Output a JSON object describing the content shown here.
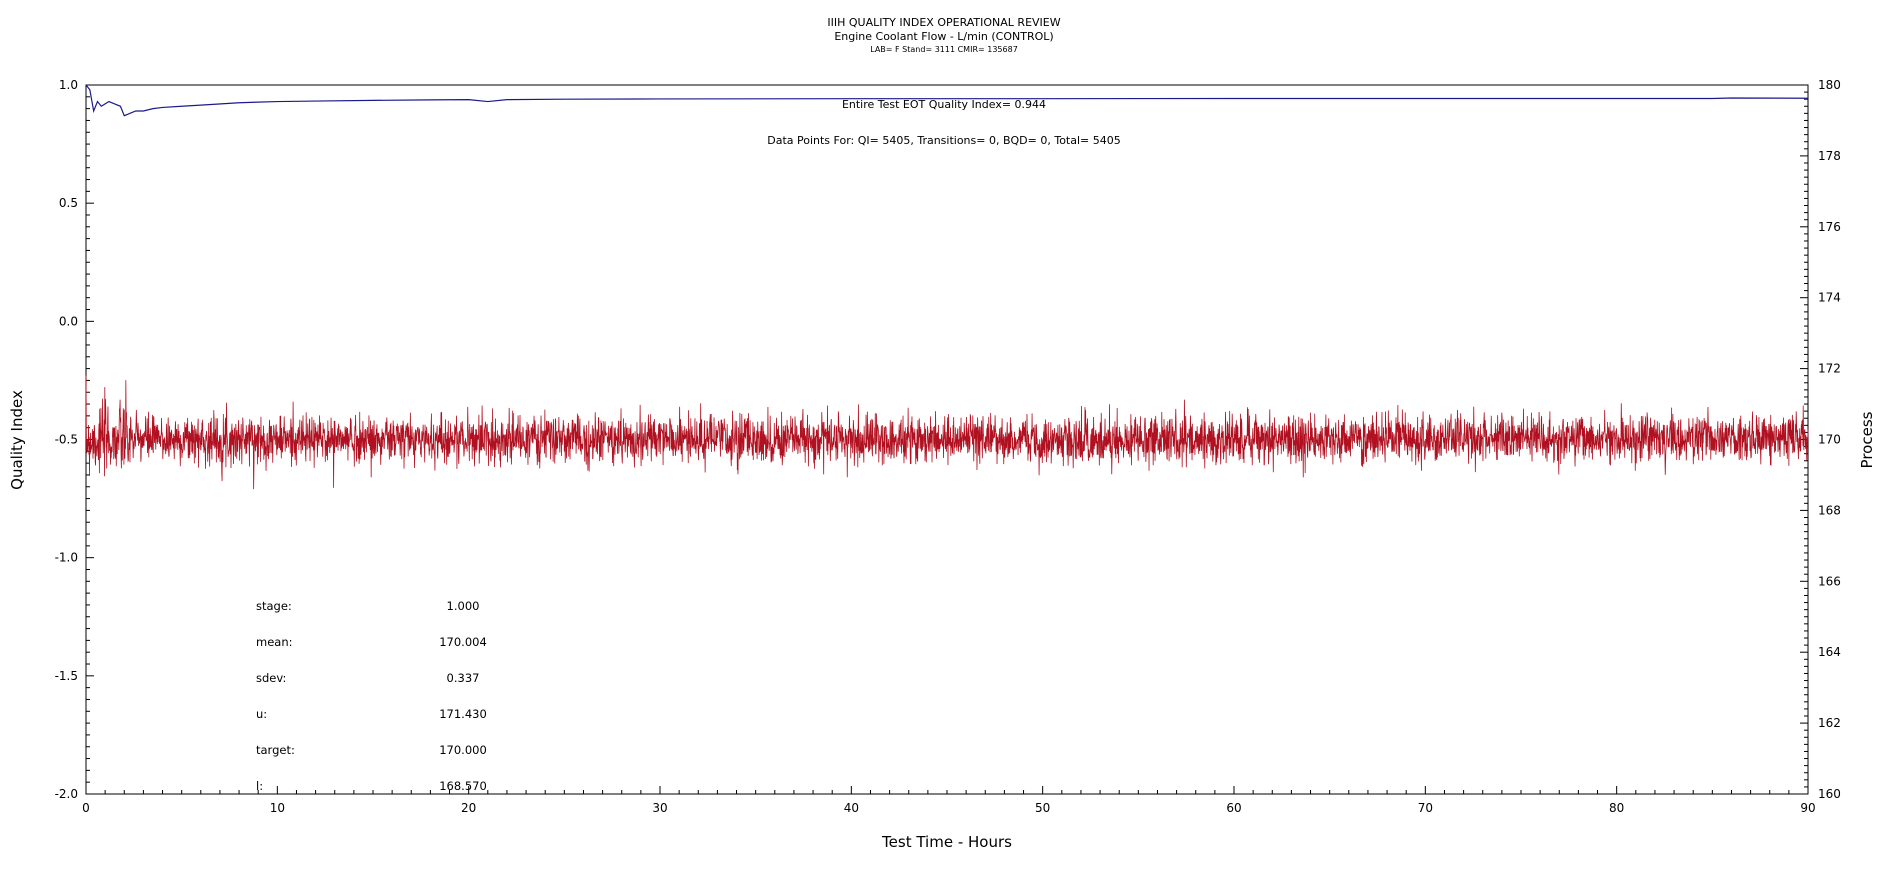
{
  "chart_data": {
    "type": "line",
    "title": "IIIH QUALITY INDEX OPERATIONAL REVIEW",
    "subtitle": "Engine Coolant Flow - L/min (CONTROL)",
    "subtitle2": "LAB= F Stand= 3111 CMIR= 135687",
    "xlabel": "Test Time - Hours",
    "ylabel_left": "Quality Index",
    "ylabel_right": "Process",
    "xlim": [
      0,
      90
    ],
    "ylim_left": [
      -2.0,
      1.0
    ],
    "ylim_right": [
      160,
      180
    ],
    "x_ticks": [
      "0",
      "10",
      "20",
      "30",
      "40",
      "50",
      "60",
      "70",
      "80",
      "90"
    ],
    "y_left_ticks": [
      "1.0",
      "0.5",
      "0.0",
      "-0.5",
      "-1.0",
      "-1.5",
      "-2.0"
    ],
    "y_right_ticks": [
      "180",
      "178",
      "176",
      "174",
      "172",
      "170",
      "168",
      "166",
      "164",
      "162",
      "160"
    ],
    "annotations": {
      "eot_quality": "Entire Test EOT Quality Index=   0.944",
      "data_points": "Data Points For: QI=  5405, Transitions=      0, BQD=      0, Total=  5405"
    },
    "stats": [
      {
        "label": "stage:",
        "value": "1.000"
      },
      {
        "label": "mean:",
        "value": "170.004"
      },
      {
        "label": "sdev:",
        "value": "0.337"
      },
      {
        "label": "u:",
        "value": "171.430"
      },
      {
        "label": "target:",
        "value": "170.000"
      },
      {
        "label": "l:",
        "value": "168.570"
      }
    ],
    "series": [
      {
        "axis": "left",
        "color": "#1a1a8c",
        "x": [
          0,
          0.2,
          0.4,
          0.6,
          0.8,
          1.0,
          1.2,
          1.5,
          1.8,
          2.0,
          2.3,
          2.6,
          3.0,
          3.5,
          4,
          5,
          6,
          8,
          10,
          12,
          15,
          18,
          20,
          21,
          22,
          25,
          30,
          40,
          50,
          60,
          70,
          80,
          85,
          86,
          90
        ],
        "values": [
          1.0,
          0.98,
          0.89,
          0.93,
          0.91,
          0.92,
          0.93,
          0.92,
          0.91,
          0.87,
          0.88,
          0.89,
          0.89,
          0.9,
          0.905,
          0.91,
          0.915,
          0.925,
          0.93,
          0.932,
          0.935,
          0.937,
          0.938,
          0.93,
          0.938,
          0.94,
          0.941,
          0.942,
          0.942,
          0.943,
          0.943,
          0.943,
          0.943,
          0.945,
          0.944
        ]
      },
      {
        "axis": "right",
        "color": "#b01020",
        "x_start": 0,
        "x_end": 90,
        "count": 5405,
        "mean": 170.004,
        "sdev": 0.337,
        "min": 168.6,
        "max": 171.8
      }
    ]
  }
}
